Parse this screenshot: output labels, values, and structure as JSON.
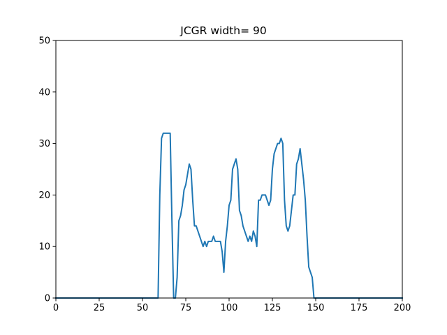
{
  "chart_data": {
    "type": "line",
    "title": "JCGR width= 90",
    "xlabel": "",
    "ylabel": "",
    "xlim": [
      0,
      200
    ],
    "ylim": [
      0,
      50
    ],
    "x_ticks": [
      0,
      25,
      50,
      75,
      100,
      125,
      150,
      175,
      200
    ],
    "y_ticks": [
      0,
      10,
      20,
      30,
      40,
      50
    ],
    "grid": false,
    "series": [
      {
        "color": "#1f77b4",
        "x": [
          0,
          59,
          60,
          61,
          62,
          63,
          64,
          65,
          66,
          67,
          68,
          69,
          70,
          71,
          72,
          73,
          74,
          75,
          76,
          77,
          78,
          79,
          80,
          81,
          82,
          83,
          84,
          85,
          86,
          87,
          88,
          89,
          90,
          91,
          92,
          93,
          94,
          95,
          96,
          97,
          98,
          99,
          100,
          101,
          102,
          103,
          104,
          105,
          106,
          107,
          108,
          109,
          110,
          111,
          112,
          113,
          114,
          115,
          116,
          117,
          118,
          119,
          120,
          121,
          122,
          123,
          124,
          125,
          126,
          127,
          128,
          129,
          130,
          131,
          132,
          133,
          134,
          135,
          136,
          137,
          138,
          139,
          140,
          141,
          142,
          143,
          144,
          145,
          146,
          147,
          148,
          149,
          150,
          200
        ],
        "y": [
          0,
          0,
          20,
          31,
          32,
          32,
          32,
          32,
          32,
          15,
          0,
          0,
          4,
          15,
          16,
          18,
          21,
          22,
          24,
          26,
          25,
          19,
          14,
          14,
          13,
          12,
          11,
          10,
          11,
          10,
          11,
          11,
          11,
          12,
          11,
          11,
          11,
          11,
          9,
          5,
          11,
          14,
          18,
          19,
          25,
          26,
          27,
          25,
          17,
          16,
          14,
          13,
          12,
          11,
          12,
          11,
          13,
          12,
          10,
          19,
          19,
          20,
          20,
          20,
          19,
          18,
          19,
          25,
          28,
          29,
          30,
          30,
          31,
          30,
          19,
          14,
          13,
          14,
          17,
          20,
          20,
          26,
          27,
          29,
          26,
          23,
          19,
          12,
          6,
          5,
          4,
          0,
          0,
          0
        ]
      }
    ]
  }
}
